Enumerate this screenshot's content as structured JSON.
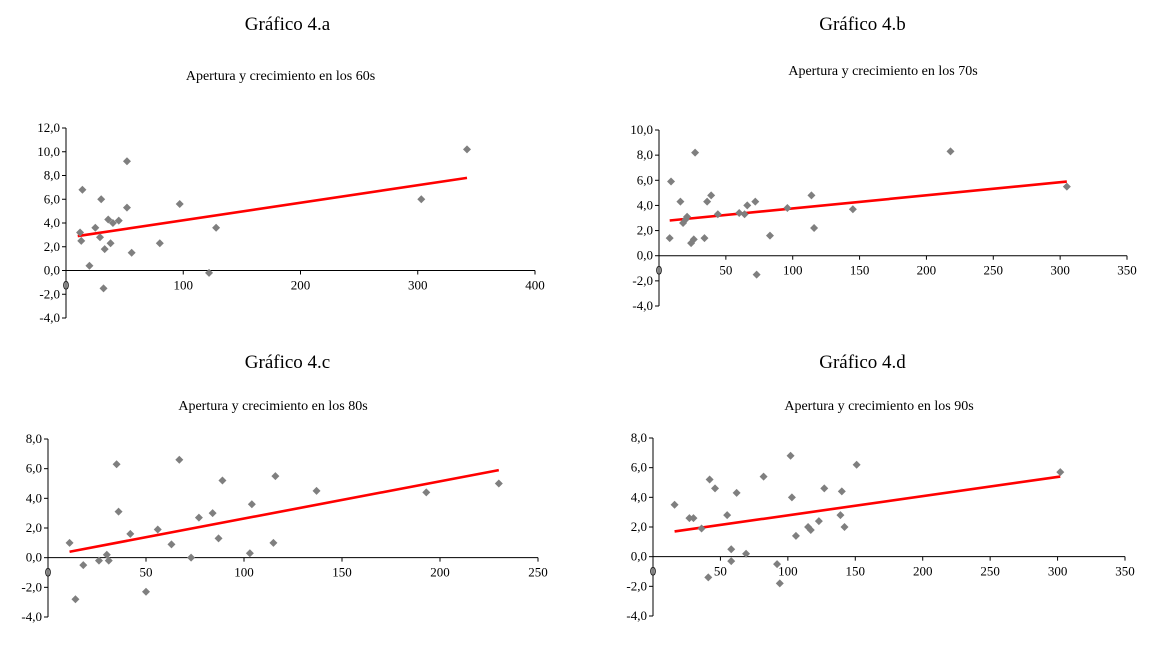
{
  "chart_data": [
    {
      "heading": "Gráfico 4.a",
      "title": "Apertura y crecimiento en los 60s",
      "type": "scatter",
      "xlim": [
        0,
        400
      ],
      "ylim": [
        -4,
        12
      ],
      "x_ticks": [
        "0",
        "100",
        "200",
        "300",
        "400"
      ],
      "y_ticks": [
        "-4,0",
        "-2,0",
        "0,0",
        "2,0",
        "4,0",
        "6,0",
        "8,0",
        "10,0",
        "12,0"
      ],
      "points": [
        [
          12,
          3.2
        ],
        [
          14,
          6.8
        ],
        [
          13,
          2.5
        ],
        [
          20,
          0.4
        ],
        [
          25,
          3.6
        ],
        [
          29,
          2.8
        ],
        [
          30,
          6.0
        ],
        [
          33,
          1.8
        ],
        [
          36,
          4.3
        ],
        [
          38,
          2.3
        ],
        [
          40,
          4.0
        ],
        [
          45,
          4.2
        ],
        [
          32,
          -1.5
        ],
        [
          52,
          9.2
        ],
        [
          52,
          5.3
        ],
        [
          56,
          1.5
        ],
        [
          97,
          5.6
        ],
        [
          80,
          2.3
        ],
        [
          122,
          -0.2
        ],
        [
          128,
          3.6
        ],
        [
          303,
          6.0
        ],
        [
          342,
          10.2
        ]
      ],
      "trendline": {
        "x": [
          10,
          342
        ],
        "y": [
          2.9,
          7.8
        ],
        "color": "#ff0000"
      },
      "marker_color": "#7f7f7f"
    },
    {
      "heading": "Gráfico 4.b",
      "title": "Apertura y crecimiento en los 70s",
      "type": "scatter",
      "xlim": [
        0,
        350
      ],
      "ylim": [
        -4,
        10
      ],
      "x_ticks": [
        "0",
        "50",
        "100",
        "150",
        "200",
        "250",
        "300",
        "350"
      ],
      "y_ticks": [
        "-4,0",
        "-2,0",
        "0,0",
        "2,0",
        "4,0",
        "6,0",
        "8,0",
        "10,0"
      ],
      "points": [
        [
          9,
          5.9
        ],
        [
          8,
          1.4
        ],
        [
          16,
          4.3
        ],
        [
          18,
          2.6
        ],
        [
          20,
          2.9
        ],
        [
          21,
          3.1
        ],
        [
          24,
          1.0
        ],
        [
          26,
          1.3
        ],
        [
          27,
          8.2
        ],
        [
          34,
          1.4
        ],
        [
          36,
          4.3
        ],
        [
          39,
          4.8
        ],
        [
          44,
          3.3
        ],
        [
          60,
          3.4
        ],
        [
          64,
          3.3
        ],
        [
          66,
          4.0
        ],
        [
          72,
          4.3
        ],
        [
          73,
          -1.5
        ],
        [
          83,
          1.6
        ],
        [
          96,
          3.8
        ],
        [
          114,
          4.8
        ],
        [
          116,
          2.2
        ],
        [
          145,
          3.7
        ],
        [
          218,
          8.3
        ],
        [
          305,
          5.5
        ]
      ],
      "trendline": {
        "x": [
          8,
          305
        ],
        "y": [
          2.8,
          5.9
        ],
        "color": "#ff0000"
      },
      "marker_color": "#7f7f7f"
    },
    {
      "heading": "Gráfico 4.c",
      "title": "Apertura y crecimiento en los 80s",
      "type": "scatter",
      "xlim": [
        0,
        250
      ],
      "ylim": [
        -4,
        8
      ],
      "x_ticks": [
        "0",
        "50",
        "100",
        "150",
        "200",
        "250"
      ],
      "y_ticks": [
        "-4,0",
        "-2,0",
        "0,0",
        "2,0",
        "4,0",
        "6,0",
        "8,0"
      ],
      "points": [
        [
          11,
          1.0
        ],
        [
          14,
          -2.8
        ],
        [
          18,
          -0.5
        ],
        [
          26,
          -0.2
        ],
        [
          30,
          0.2
        ],
        [
          31,
          -0.2
        ],
        [
          35,
          6.3
        ],
        [
          36,
          3.1
        ],
        [
          42,
          1.6
        ],
        [
          50,
          -2.3
        ],
        [
          56,
          1.9
        ],
        [
          63,
          0.9
        ],
        [
          67,
          6.6
        ],
        [
          73,
          0.0
        ],
        [
          77,
          2.7
        ],
        [
          84,
          3.0
        ],
        [
          87,
          1.3
        ],
        [
          89,
          5.2
        ],
        [
          103,
          0.3
        ],
        [
          104,
          3.6
        ],
        [
          115,
          1.0
        ],
        [
          116,
          5.5
        ],
        [
          137,
          4.5
        ],
        [
          193,
          4.4
        ],
        [
          230,
          5.0
        ]
      ],
      "trendline": {
        "x": [
          11,
          230
        ],
        "y": [
          0.4,
          5.9
        ],
        "color": "#ff0000"
      },
      "marker_color": "#7f7f7f"
    },
    {
      "heading": "Gráfico 4.d",
      "title": "Apertura y crecimiento en los 90s",
      "type": "scatter",
      "xlim": [
        0,
        350
      ],
      "ylim": [
        -4,
        8
      ],
      "x_ticks": [
        "0",
        "50",
        "100",
        "150",
        "200",
        "250",
        "300",
        "350"
      ],
      "y_ticks": [
        "-4,0",
        "-2,0",
        "0,0",
        "2,0",
        "4,0",
        "6,0",
        "8,0"
      ],
      "points": [
        [
          16,
          3.5
        ],
        [
          27,
          2.6
        ],
        [
          30,
          2.6
        ],
        [
          36,
          1.9
        ],
        [
          41,
          -1.4
        ],
        [
          42,
          5.2
        ],
        [
          46,
          4.6
        ],
        [
          55,
          2.8
        ],
        [
          58,
          0.5
        ],
        [
          58,
          -0.3
        ],
        [
          62,
          4.3
        ],
        [
          69,
          0.2
        ],
        [
          82,
          5.4
        ],
        [
          92,
          -0.5
        ],
        [
          94,
          -1.8
        ],
        [
          102,
          6.8
        ],
        [
          103,
          4.0
        ],
        [
          106,
          1.4
        ],
        [
          115,
          2.0
        ],
        [
          117,
          1.8
        ],
        [
          123,
          2.4
        ],
        [
          127,
          4.6
        ],
        [
          139,
          2.8
        ],
        [
          140,
          4.4
        ],
        [
          142,
          2.0
        ],
        [
          151,
          6.2
        ],
        [
          302,
          5.7
        ]
      ],
      "trendline": {
        "x": [
          16,
          302
        ],
        "y": [
          1.7,
          5.4
        ],
        "color": "#ff0000"
      },
      "marker_color": "#7f7f7f"
    }
  ]
}
